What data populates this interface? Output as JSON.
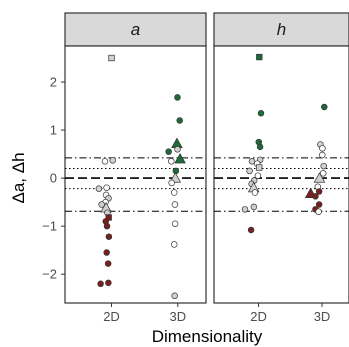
{
  "chart_data": {
    "type": "scatter",
    "xlabel": "Dimensionality",
    "ylabel": "Δa, Δh",
    "categories": [
      "2D",
      "3D"
    ],
    "ylim": [
      -2.6,
      2.75
    ],
    "yticks": [
      -2,
      -1,
      0,
      1,
      2
    ],
    "grid": false,
    "colors": {
      "gray": "#d0d0d0",
      "white": "#ffffff",
      "red": "#7a1f1f",
      "green": "#1d6b3a"
    },
    "reference_lines": [
      {
        "y": 0.0,
        "style": "dashed"
      },
      {
        "y": 0.42,
        "style": "dotdash"
      },
      {
        "y": -0.69,
        "style": "dotdash"
      },
      {
        "y": 0.2,
        "style": "dotted"
      },
      {
        "y": -0.22,
        "style": "dotted"
      }
    ],
    "panels": [
      {
        "strip": "a",
        "points": [
          {
            "x": "2D",
            "y": 2.5,
            "shape": "square",
            "color": "gray"
          },
          {
            "x": "2D",
            "y": 0.37,
            "shape": "circle",
            "color": "gray"
          },
          {
            "x": "2D",
            "y": 0.35,
            "shape": "circle",
            "color": "white"
          },
          {
            "x": "2D",
            "y": -0.2,
            "shape": "circle",
            "color": "white"
          },
          {
            "x": "2D",
            "y": -0.22,
            "shape": "circle",
            "color": "gray"
          },
          {
            "x": "2D",
            "y": -0.35,
            "shape": "circle",
            "color": "white"
          },
          {
            "x": "2D",
            "y": -0.42,
            "shape": "circle",
            "color": "gray"
          },
          {
            "x": "2D",
            "y": -0.5,
            "shape": "circle",
            "color": "white"
          },
          {
            "x": "2D",
            "y": -0.55,
            "shape": "circle",
            "color": "gray"
          },
          {
            "x": "2D",
            "y": -0.62,
            "shape": "triangle",
            "color": "gray"
          },
          {
            "x": "2D",
            "y": -0.72,
            "shape": "circle",
            "color": "gray"
          },
          {
            "x": "2D",
            "y": -0.82,
            "shape": "square",
            "color": "red"
          },
          {
            "x": "2D",
            "y": -0.9,
            "shape": "circle",
            "color": "red"
          },
          {
            "x": "2D",
            "y": -1.0,
            "shape": "circle",
            "color": "red"
          },
          {
            "x": "2D",
            "y": -1.22,
            "shape": "circle",
            "color": "red"
          },
          {
            "x": "2D",
            "y": -1.55,
            "shape": "circle",
            "color": "red"
          },
          {
            "x": "2D",
            "y": -1.78,
            "shape": "circle",
            "color": "red"
          },
          {
            "x": "2D",
            "y": -2.18,
            "shape": "circle",
            "color": "red"
          },
          {
            "x": "2D",
            "y": -2.2,
            "shape": "circle",
            "color": "red"
          },
          {
            "x": "3D",
            "y": 1.68,
            "shape": "circle",
            "color": "green"
          },
          {
            "x": "3D",
            "y": 1.2,
            "shape": "circle",
            "color": "green"
          },
          {
            "x": "3D",
            "y": 0.72,
            "shape": "triangle",
            "color": "green"
          },
          {
            "x": "3D",
            "y": 0.6,
            "shape": "circle",
            "color": "gray"
          },
          {
            "x": "3D",
            "y": 0.55,
            "shape": "circle",
            "color": "green"
          },
          {
            "x": "3D",
            "y": 0.4,
            "shape": "triangle",
            "color": "green"
          },
          {
            "x": "3D",
            "y": 0.35,
            "shape": "circle",
            "color": "white"
          },
          {
            "x": "3D",
            "y": 0.15,
            "shape": "circle",
            "color": "green"
          },
          {
            "x": "3D",
            "y": 0.0,
            "shape": "triangle",
            "color": "gray"
          },
          {
            "x": "3D",
            "y": -0.1,
            "shape": "circle",
            "color": "white"
          },
          {
            "x": "3D",
            "y": -0.3,
            "shape": "circle",
            "color": "white"
          },
          {
            "x": "3D",
            "y": -0.55,
            "shape": "circle",
            "color": "white"
          },
          {
            "x": "3D",
            "y": -0.95,
            "shape": "circle",
            "color": "white"
          },
          {
            "x": "3D",
            "y": -1.38,
            "shape": "circle",
            "color": "white"
          },
          {
            "x": "3D",
            "y": -2.45,
            "shape": "circle",
            "color": "gray"
          }
        ]
      },
      {
        "strip": "h",
        "points": [
          {
            "x": "2D",
            "y": 2.52,
            "shape": "square",
            "color": "green"
          },
          {
            "x": "2D",
            "y": 1.35,
            "shape": "circle",
            "color": "green"
          },
          {
            "x": "2D",
            "y": 0.75,
            "shape": "circle",
            "color": "green"
          },
          {
            "x": "2D",
            "y": 0.65,
            "shape": "circle",
            "color": "green"
          },
          {
            "x": "2D",
            "y": 0.38,
            "shape": "circle",
            "color": "gray"
          },
          {
            "x": "2D",
            "y": 0.35,
            "shape": "circle",
            "color": "gray"
          },
          {
            "x": "2D",
            "y": 0.3,
            "shape": "circle",
            "color": "white"
          },
          {
            "x": "2D",
            "y": 0.22,
            "shape": "square",
            "color": "gray"
          },
          {
            "x": "2D",
            "y": 0.15,
            "shape": "circle",
            "color": "gray"
          },
          {
            "x": "2D",
            "y": 0.05,
            "shape": "circle",
            "color": "white"
          },
          {
            "x": "2D",
            "y": -0.05,
            "shape": "circle",
            "color": "gray"
          },
          {
            "x": "2D",
            "y": -0.12,
            "shape": "circle",
            "color": "gray"
          },
          {
            "x": "2D",
            "y": -0.2,
            "shape": "triangle",
            "color": "gray"
          },
          {
            "x": "2D",
            "y": -0.3,
            "shape": "circle",
            "color": "white"
          },
          {
            "x": "2D",
            "y": -0.6,
            "shape": "circle",
            "color": "gray"
          },
          {
            "x": "2D",
            "y": -0.65,
            "shape": "circle",
            "color": "gray"
          },
          {
            "x": "2D",
            "y": -1.08,
            "shape": "circle",
            "color": "red"
          },
          {
            "x": "3D",
            "y": 1.48,
            "shape": "circle",
            "color": "green"
          },
          {
            "x": "3D",
            "y": 0.7,
            "shape": "circle",
            "color": "gray"
          },
          {
            "x": "3D",
            "y": 0.62,
            "shape": "circle",
            "color": "white"
          },
          {
            "x": "3D",
            "y": 0.48,
            "shape": "circle",
            "color": "white"
          },
          {
            "x": "3D",
            "y": 0.25,
            "shape": "circle",
            "color": "gray"
          },
          {
            "x": "3D",
            "y": 0.1,
            "shape": "circle",
            "color": "white"
          },
          {
            "x": "3D",
            "y": 0.0,
            "shape": "triangle",
            "color": "gray"
          },
          {
            "x": "3D",
            "y": -0.18,
            "shape": "circle",
            "color": "white"
          },
          {
            "x": "3D",
            "y": -0.28,
            "shape": "circle",
            "color": "red"
          },
          {
            "x": "3D",
            "y": -0.32,
            "shape": "triangle",
            "color": "red"
          },
          {
            "x": "3D",
            "y": -0.38,
            "shape": "circle",
            "color": "red"
          },
          {
            "x": "3D",
            "y": -0.55,
            "shape": "circle",
            "color": "red"
          },
          {
            "x": "3D",
            "y": -0.65,
            "shape": "circle",
            "color": "red"
          },
          {
            "x": "3D",
            "y": -0.7,
            "shape": "circle",
            "color": "white"
          }
        ]
      }
    ]
  }
}
